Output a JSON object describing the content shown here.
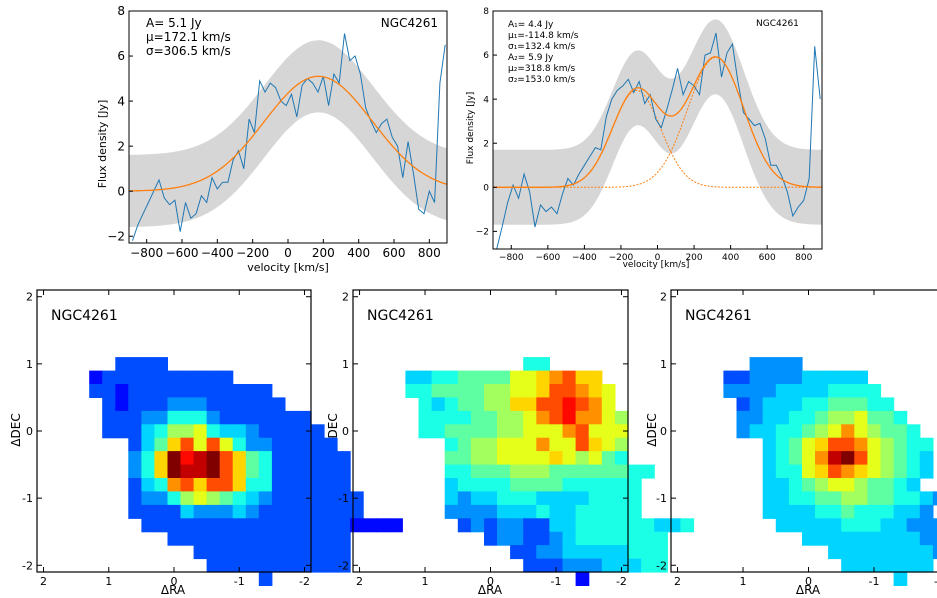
{
  "chart_data": [
    {
      "type": "line",
      "title": "NGC4261",
      "xlabel": "velocity [km/s]",
      "ylabel": "Flux density [Jy]",
      "xlim": [
        -900,
        900
      ],
      "ylim": [
        -2.3,
        8
      ],
      "xticks": [
        -800,
        -600,
        -400,
        -200,
        0,
        200,
        400,
        600,
        800
      ],
      "yticks": [
        -2,
        0,
        2,
        4,
        6,
        8
      ],
      "annotations": [
        "A= 5.1 Jy",
        "$\\mu$=172.1 km/s",
        "$\\sigma$=306.5 km/s"
      ],
      "annotation_display": [
        "A= 5.1 Jy",
        "μ=172.1 km/s",
        "σ=306.5 km/s"
      ],
      "fit": {
        "A": 5.1,
        "mu": 172.1,
        "sigma": 306.5
      },
      "band_half_width": 1.6,
      "series": [
        {
          "x": [
            -880,
            -850,
            -820,
            -790,
            -760,
            -730,
            -700,
            -670,
            -640,
            -610,
            -580,
            -550,
            -520,
            -490,
            -460,
            -430,
            -400,
            -370,
            -340,
            -310,
            -280,
            -250,
            -220,
            -190,
            -160,
            -130,
            -100,
            -70,
            -40,
            -10,
            20,
            50,
            80,
            110,
            140,
            170,
            200,
            230,
            260,
            290,
            320,
            350,
            380,
            410,
            440,
            470,
            500,
            530,
            560,
            590,
            620,
            650,
            680,
            710,
            740,
            770,
            800,
            830,
            860,
            890
          ],
          "y": [
            -2.2,
            -1.5,
            -1.0,
            -0.5,
            0.0,
            0.5,
            -0.3,
            -0.6,
            -0.4,
            -1.8,
            -0.5,
            -1.2,
            -1.0,
            -0.2,
            -0.5,
            0.6,
            0.1,
            0.4,
            0.4,
            1.4,
            1.8,
            1.0,
            3.2,
            2.6,
            4.9,
            4.4,
            4.8,
            4.6,
            4.0,
            3.8,
            4.3,
            3.3,
            4.7,
            5.0,
            4.8,
            4.4,
            5.1,
            3.8,
            5.2,
            4.8,
            7.0,
            5.8,
            6.0,
            5.2,
            3.7,
            3.1,
            2.6,
            3.0,
            3.2,
            2.4,
            2.0,
            0.6,
            2.2,
            0.8,
            -0.8,
            -1.0,
            0.0,
            -0.5,
            4.8,
            6.5
          ]
        }
      ]
    },
    {
      "type": "line",
      "title": "NGC4261",
      "xlabel": "velocity [km/s]",
      "ylabel": "Flux density [Jy]",
      "xlim": [
        -900,
        900
      ],
      "ylim": [
        -2.8,
        8
      ],
      "xticks": [
        -800,
        -600,
        -400,
        -200,
        0,
        200,
        400,
        600,
        800
      ],
      "yticks": [
        -2,
        0,
        2,
        4,
        6,
        8
      ],
      "annotations": [
        "A$_1$= 4.4 Jy",
        "$\\mu_1$=-114.8 km/s",
        "$\\sigma_1$=132.4 km/s",
        "A$_2$= 5.9 Jy",
        "$\\mu_2$=318.8 km/s",
        "$\\sigma_2$=153.0 km/s"
      ],
      "annotation_display": [
        "A₁= 4.4 Jy",
        "μ₁=-114.8 km/s",
        "σ₁=132.4 km/s",
        "A₂= 5.9 Jy",
        "μ₂=318.8 km/s",
        "σ₂=153.0 km/s"
      ],
      "fit": {
        "components": [
          {
            "A": 4.4,
            "mu": -114.8,
            "sigma": 132.4
          },
          {
            "A": 5.9,
            "mu": 318.8,
            "sigma": 153.0
          }
        ]
      },
      "band_half_width": 1.7,
      "series": [
        {
          "x": [
            -880,
            -850,
            -820,
            -790,
            -760,
            -730,
            -700,
            -670,
            -640,
            -610,
            -580,
            -550,
            -520,
            -490,
            -460,
            -430,
            -400,
            -370,
            -340,
            -310,
            -280,
            -250,
            -220,
            -190,
            -160,
            -130,
            -100,
            -70,
            -40,
            -10,
            20,
            50,
            80,
            110,
            140,
            170,
            200,
            230,
            260,
            290,
            320,
            350,
            380,
            410,
            440,
            470,
            500,
            530,
            560,
            590,
            620,
            650,
            680,
            710,
            740,
            770,
            800,
            830,
            860,
            890
          ],
          "y": [
            -2.8,
            -1.8,
            -0.7,
            0.1,
            -0.5,
            0.6,
            -0.2,
            -1.8,
            -0.8,
            -1.1,
            -0.9,
            -1.2,
            -0.3,
            0.4,
            0.1,
            0.6,
            1.0,
            1.4,
            1.8,
            1.7,
            3.2,
            4.0,
            4.4,
            4.6,
            4.9,
            4.3,
            4.8,
            3.8,
            4.2,
            3.1,
            2.7,
            3.5,
            4.4,
            5.4,
            4.2,
            4.8,
            4.6,
            4.2,
            6.0,
            6.1,
            7.0,
            5.0,
            6.1,
            6.5,
            4.8,
            3.4,
            3.1,
            2.8,
            2.9,
            2.2,
            1.0,
            1.0,
            0.5,
            -0.2,
            -1.3,
            -0.9,
            -0.6,
            0.4,
            6.4,
            4.0
          ]
        }
      ]
    },
    {
      "type": "heatmap",
      "title": "NGC4261",
      "xlabel": "ΔRA",
      "ylabel": "ΔDEC",
      "xlim": [
        2.1,
        -2.1
      ],
      "ylim": [
        -2.1,
        2.1
      ],
      "xticks": [
        2,
        1,
        0,
        -1,
        -2
      ],
      "xtick_labels": [
        "2",
        "1",
        "0",
        "-1",
        "-2"
      ],
      "yticks": [
        -2,
        -1,
        0,
        1,
        2
      ],
      "ytick_labels": [
        "-2",
        "-1",
        "0",
        "1",
        "2"
      ],
      "colormap": "jet",
      "pixel_size": 0.2,
      "grid_origin": {
        "ra": 1.7,
        "dec": 1.3
      },
      "rows": [
        "............................",
        "....3333....................",
        "..23333333333...............",
        "..33233333333333............",
        "...32333444333333...........",
        "...3334466643333333.........",
        "...33356889655433333........",
        ".....357AC9C964433333.......",
        ".....46AFDEFCA76333333......",
        ".....46AFEEFCA76333333......",
        ".....356BCACCA66333333......",
        ".....344689876543333333.....",
        ".....333354445433333333.....",
        "......33333333333333332222..",
        "........33333333333333......",
        "..........333333333333......",
        "...........33333333333......",
        "...............3............",
        "............................"
      ]
    },
    {
      "type": "heatmap",
      "title": "NGC4261",
      "xlabel": "ΔRA",
      "ylabel": "ΔDEC",
      "xlim": [
        2.1,
        -2.1
      ],
      "ylim": [
        -2.1,
        2.1
      ],
      "xticks": [
        2,
        1,
        0,
        -1,
        -2
      ],
      "xtick_labels": [
        "2",
        "1",
        "0",
        "-1",
        "-2"
      ],
      "yticks": [
        -2,
        -1,
        0,
        1,
        2
      ],
      "ytick_labels": [
        "-2",
        "-1",
        "0",
        "1",
        "2"
      ],
      "colormap": "jet",
      "pixel_size": 0.2,
      "grid_origin": {
        "ra": 1.7,
        "dec": 1.3
      },
      "rows": [
        "............................",
        "...........66...............",
        "..5566777799ABCAA...........",
        "..6677778899ACCBA9..........",
        "...6567788AACCDCB9..........",
        "...666677889BCDBB98.........",
        "...66777788999BC999.........",
        ".....6788999B99CA98.........",
        ".....77889999A98976.........",
        ".....6677788877777766.......",
        ".....566667777666666........",
        ".....545566655556666........",
        ".....444455565566666........",
        "......343443355666666556....",
        "........34433456666666......",
        "..........334455555666......",
        "...........33344455566......",
        "...............2............",
        "............................"
      ]
    },
    {
      "type": "heatmap",
      "title": "NGC4261",
      "xlabel": "ΔRA",
      "ylabel": "ΔDEC",
      "xlim": [
        2.1,
        -2.1
      ],
      "ylim": [
        -2.1,
        2.1
      ],
      "xticks": [
        2,
        1,
        0,
        -1,
        -2
      ],
      "xtick_labels": [
        "2",
        "1",
        "0",
        "-1",
        "-2"
      ],
      "yticks": [
        -2,
        -1,
        0,
        1,
        2
      ],
      "ytick_labels": [
        "-2",
        "-1",
        "0",
        "1",
        "2"
      ],
      "colormap": "jet",
      "pixel_size": 0.2,
      "grid_origin": {
        "ra": 1.7,
        "dec": 1.3
      },
      "rows": [
        "............................",
        "....4444....................",
        "..33444455555...............",
        "..444455556666..............",
        "...345556677766.............",
        "...4455667889776............",
        "...45566789B98776...........",
        ".....5679ACCB98766..........",
        ".....5679BEFC98765..........",
        ".....5669ACBA98765..........",
        ".....556789987765...........",
        ".....55667788776654.........",
        ".....5555667666554..........",
        "......555556665544433443....",
        "........55555555544.........",
        "..........5555555544........",
        "...........5555555..........",
        "...............5............",
        "............................"
      ]
    }
  ]
}
